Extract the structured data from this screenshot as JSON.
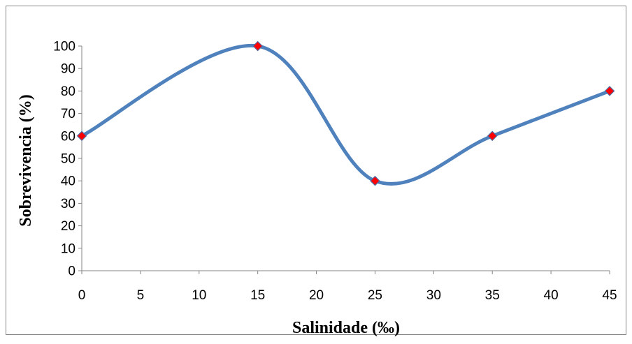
{
  "chart_data": {
    "type": "line",
    "title": "",
    "xlabel": "Salinidade (‰)",
    "ylabel": "Sobrevivencia (%)",
    "xlim": [
      0,
      45
    ],
    "ylim": [
      0,
      100
    ],
    "x_ticks": [
      0,
      5,
      10,
      15,
      20,
      25,
      30,
      35,
      40,
      45
    ],
    "y_ticks": [
      0,
      10,
      20,
      30,
      40,
      50,
      60,
      70,
      80,
      90,
      100
    ],
    "grid": false,
    "smoothed": true,
    "series": [
      {
        "x": [
          0,
          15,
          25,
          35,
          45
        ],
        "y": [
          60,
          100,
          40,
          60,
          80
        ],
        "line_color": "#4F81BD",
        "marker": "diamond",
        "marker_color": "#FF0000"
      }
    ]
  }
}
